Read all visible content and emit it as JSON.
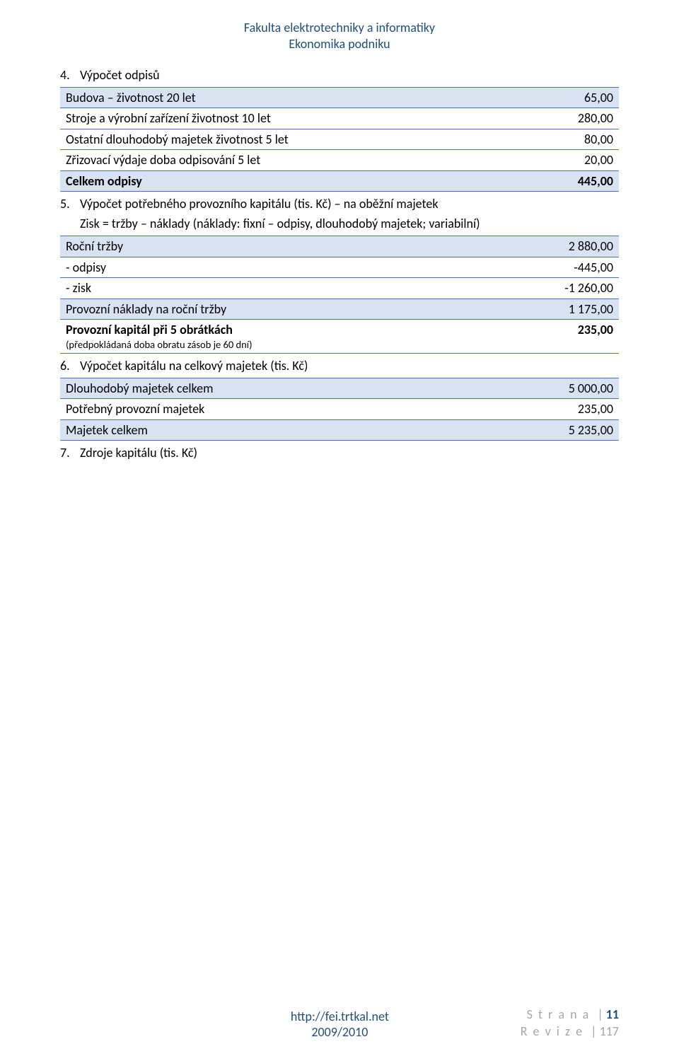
{
  "header": {
    "line1": "Fakulta elektrotechniky a informatiky",
    "line2": "Ekonomika podniku"
  },
  "sections": {
    "s4": {
      "num": "4.",
      "title": "Výpočet odpisů"
    },
    "s5": {
      "num": "5.",
      "title": "Výpočet potřebného provozního kapitálu (tis. Kč) – na oběžní majetek",
      "sub": "Zisk = tržby – náklady (náklady: fixní – odpisy, dlouhodobý majetek; variabilní)"
    },
    "s6": {
      "num": "6.",
      "title": "Výpočet kapitálu na celkový majetek (tis. Kč)"
    },
    "s7": {
      "num": "7.",
      "title": "Zdroje kapitálu (tis. Kč)"
    }
  },
  "table1": {
    "rows": [
      {
        "label": "Budova – životnost 20 let",
        "value": "65,00",
        "header": true
      },
      {
        "label": "Stroje a výrobní zařízení životnost 10 let",
        "value": "280,00"
      },
      {
        "label": "Ostatní dlouhodobý majetek životnost 5 let",
        "value": "80,00"
      },
      {
        "label": "Zřizovací výdaje doba odpisování 5 let",
        "value": "20,00"
      },
      {
        "label": "Celkem odpisy",
        "value": "445,00",
        "header": true,
        "bold": true
      }
    ]
  },
  "table2": {
    "rows": [
      {
        "label": "Roční tržby",
        "value": "2 880,00",
        "header": true
      },
      {
        "label": "- odpisy",
        "value": "-445,00"
      },
      {
        "label": "- zisk",
        "value": "-1 260,00"
      },
      {
        "label": "Provozní náklady na roční tržby",
        "value": "1 175,00",
        "header": true
      },
      {
        "label": "Provozní kapitál při 5 obrátkách",
        "note": "(předpokládaná doba obratu zásob je 60 dní)",
        "value": "235,00",
        "bold": true
      }
    ]
  },
  "table3": {
    "rows": [
      {
        "label": "Dlouhodobý majetek celkem",
        "value": "5 000,00",
        "header": true
      },
      {
        "label": "Potřebný provozní majetek",
        "value": "235,00"
      },
      {
        "label": "Majetek celkem",
        "value": "5 235,00",
        "header": true
      }
    ]
  },
  "footer": {
    "url": "http://fei.trtkal.net",
    "year": "2009/2010",
    "page_label": "S t r a n a",
    "page_num": "11",
    "rev_label": "R e v i z e",
    "rev_num": "117"
  },
  "colors": {
    "header_text": "#1f4e79",
    "table_border": "#4472c4",
    "table_header_bg": "#d9e2f3",
    "footer_gray": "#a6a6a6",
    "footer_accent": "#1f4e79",
    "background": "#ffffff"
  }
}
